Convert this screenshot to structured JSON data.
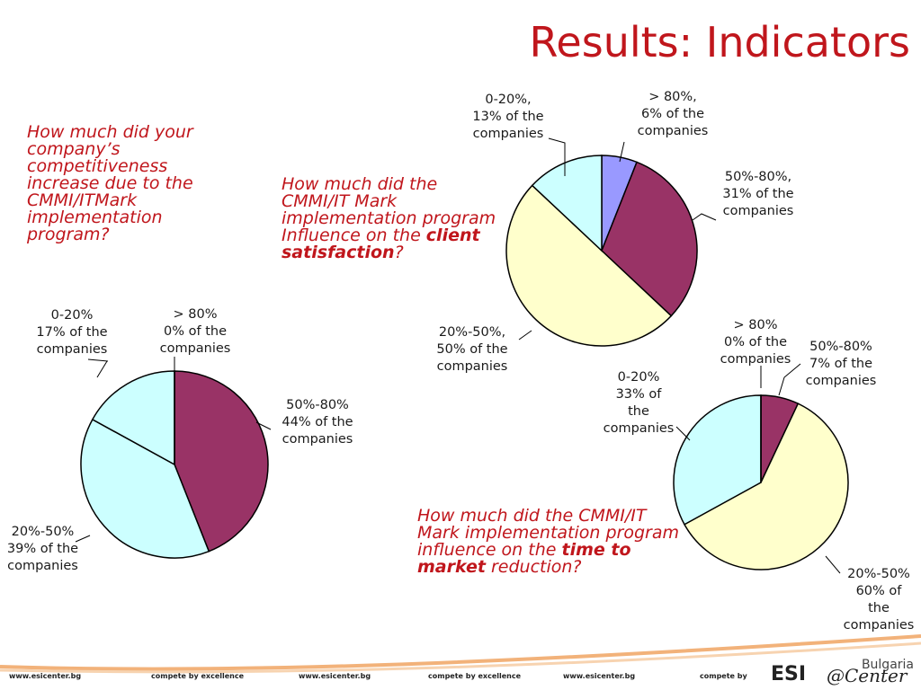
{
  "slide": {
    "title": "Results: Indicators"
  },
  "questions": {
    "q1": "How much did your company’s competitiveness increase due to the CMMI/ITMark implementation program?",
    "q2_line1": "How much did the CMMI/IT Mark implementation program",
    "q2_line2_pre": "Influence on the ",
    "q2_bold": "client satisfaction",
    "q2_post": "?",
    "q3_pre": "How much did the CMMI/IT Mark implementation program influence on the ",
    "q3_bold": "time to market",
    "q3_post": " reduction?"
  },
  "colors": {
    "purple": "#993366",
    "light_cyan": "#ccffff",
    "light_yellow": "#ffffcc",
    "periwinkle": "#9999ff",
    "title_red": "#c0161c"
  },
  "chart_data": [
    {
      "type": "pie",
      "slices": [
        {
          "label": "> 80%",
          "value": 0,
          "text": "> 80%\n0% of the\ncompanies",
          "color": "#9999ff"
        },
        {
          "label": "50%-80%",
          "value": 44,
          "text": "50%-80%\n44% of the\ncompanies",
          "color": "#993366"
        },
        {
          "label": "20%-50%",
          "value": 39,
          "text": "20%-50%\n39% of the\ncompanies",
          "color": "#ccffff"
        },
        {
          "label": "0-20%",
          "value": 17,
          "text": "0-20%\n17% of the\ncompanies",
          "color": "#ccffff"
        }
      ]
    },
    {
      "type": "pie",
      "slices": [
        {
          "label": "> 80%",
          "value": 6,
          "text": "> 80%,\n6% of the\ncompanies",
          "color": "#9999ff"
        },
        {
          "label": "50%-80%",
          "value": 31,
          "text": "50%-80%,\n31% of the\ncompanies",
          "color": "#993366"
        },
        {
          "label": "20%-50%",
          "value": 50,
          "text": "20%-50%,\n50% of the\ncompanies",
          "color": "#ffffcc"
        },
        {
          "label": "0-20%",
          "value": 13,
          "text": "0-20%,\n13% of the\ncompanies",
          "color": "#ccffff"
        }
      ]
    },
    {
      "type": "pie",
      "slices": [
        {
          "label": "> 80%",
          "value": 0,
          "text": "> 80%\n0% of the\ncompanies",
          "color": "#9999ff"
        },
        {
          "label": "50%-80%",
          "value": 7,
          "text": "50%-80%\n7% of the\ncompanies",
          "color": "#993366"
        },
        {
          "label": "20%-50%",
          "value": 60,
          "text": "20%-50%\n60% of\nthe\ncompanies",
          "color": "#ffffcc"
        },
        {
          "label": "0-20%",
          "value": 33,
          "text": "0-20%\n33% of\nthe\ncompanies",
          "color": "#ccffff"
        }
      ]
    }
  ],
  "footer": {
    "items": [
      "www.esicenter.bg",
      "compete by excellence",
      "www.esicenter.bg",
      "compete by excellence",
      "www.esicenter.bg",
      "compete by"
    ],
    "logo_main": "ESI",
    "logo_center": "@Center",
    "logo_country": "Bulgaria"
  }
}
